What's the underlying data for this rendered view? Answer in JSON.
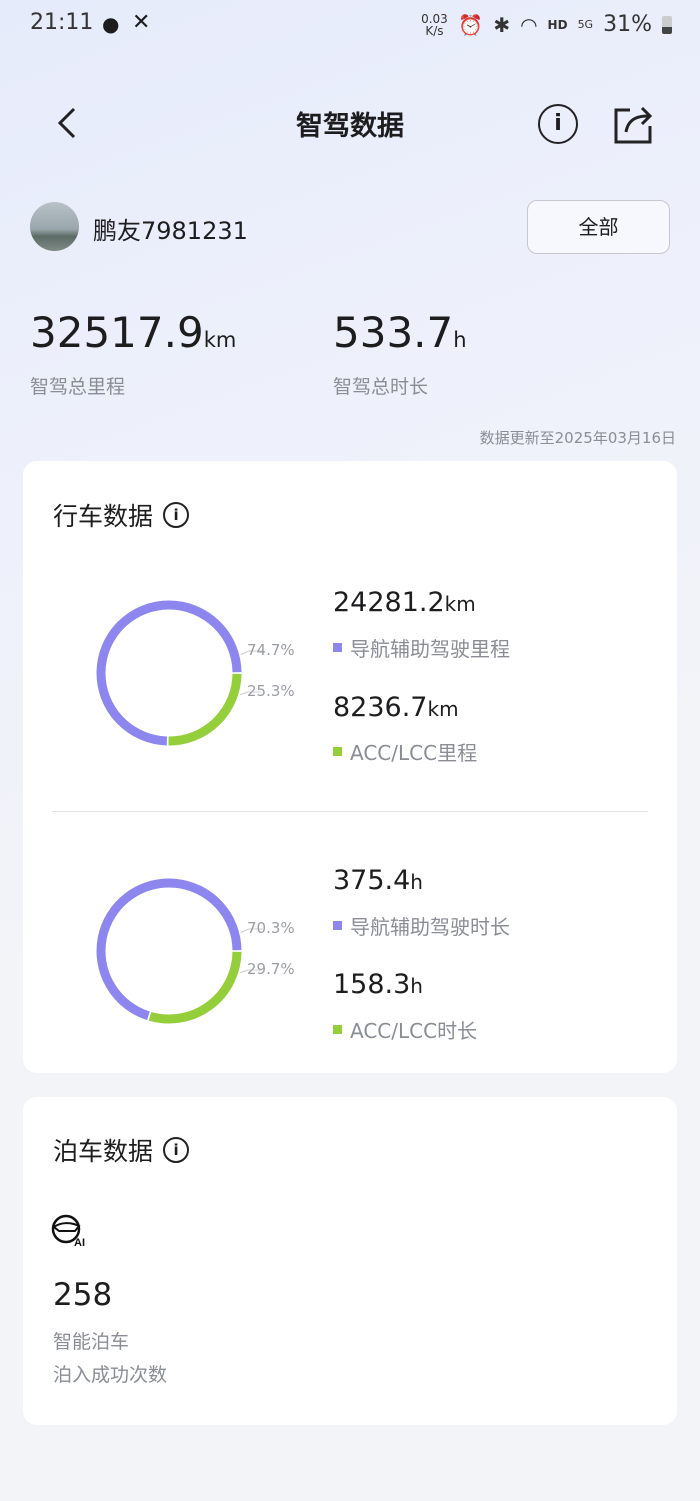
{
  "status_bar": {
    "time": "21:11",
    "net_speed": "0.03 K/s",
    "hd": "HD",
    "network": "5G",
    "battery": "31%"
  },
  "header": {
    "title": "智驾数据",
    "back_icon": "chevron-left-icon",
    "info_icon": "info-icon",
    "share_icon": "share-icon"
  },
  "user": {
    "name": "鹏友7981231",
    "filter_label": "全部"
  },
  "summary": {
    "total_distance": "32517.9",
    "distance_unit": "km",
    "distance_label": "智驾总里程",
    "total_time": "533.7",
    "time_unit": "h",
    "time_label": "智驾总时长",
    "updated": "数据更新至2025年03月16日"
  },
  "driving": {
    "title": "行车数据",
    "distance": {
      "nav_value": "24281.2",
      "nav_unit": "km",
      "nav_label": "导航辅助驾驶里程",
      "nav_pct": "74.7%",
      "acc_value": "8236.7",
      "acc_unit": "km",
      "acc_label": "ACC/LCC里程",
      "acc_pct": "25.3%",
      "nav_fraction": 0.747
    },
    "time": {
      "nav_value": "375.4",
      "nav_unit": "h",
      "nav_label": "导航辅助驾驶时长",
      "nav_pct": "70.3%",
      "acc_value": "158.3",
      "acc_unit": "h",
      "acc_label": "ACC/LCC时长",
      "acc_pct": "29.7%",
      "nav_fraction": 0.703
    }
  },
  "parking": {
    "title": "泊车数据",
    "icon": "ai-parking-steering-icon",
    "count": "258",
    "label1": "智能泊车",
    "label2": "泊入成功次数"
  },
  "colors": {
    "nav": "#8d86ee",
    "acc": "#95ce3b"
  }
}
